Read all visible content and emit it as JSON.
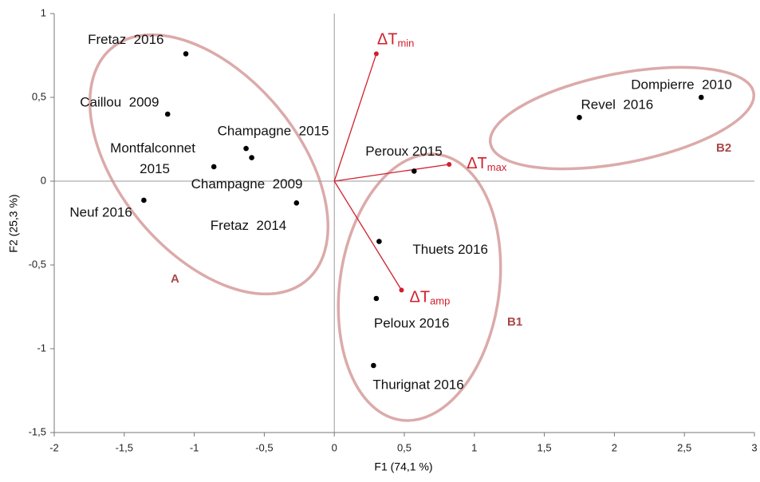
{
  "chart_data": {
    "type": "scatter",
    "xlabel": "F1 (74,1 %)",
    "ylabel": "F2 (25,3 %)",
    "xlim": [
      -2,
      3
    ],
    "ylim": [
      -1.5,
      1
    ],
    "xticks": [
      -2,
      {
        "value": -1.5,
        "label": "-1,5"
      },
      -1,
      {
        "value": -0.5,
        "label": "-0,5"
      },
      0,
      {
        "value": 0.5,
        "label": "0,5"
      },
      1,
      {
        "value": 1.5,
        "label": "1,5"
      },
      2,
      {
        "value": 2.5,
        "label": "2,5"
      },
      3
    ],
    "yticks": [
      1,
      {
        "value": 0.5,
        "label": "0,5"
      },
      0,
      {
        "value": -0.5,
        "label": "-0,5"
      },
      -1,
      {
        "value": -1.5,
        "label": "-1,5"
      }
    ],
    "points": {
      "color": "#000000",
      "labels": [
        "Fretaz  2016",
        "Caillou  2009",
        "Champagne  2015",
        "Champagne  2009",
        "Montfalconnet 2015",
        "Fretaz  2014",
        "Neuf 2016",
        "Peroux 2015",
        "Thuets 2016",
        "Peloux 2016",
        "Thurignat 2016",
        "Revel  2016",
        "Dompierre  2010"
      ],
      "x": [
        -1.06,
        -1.19,
        -0.63,
        -0.59,
        -0.86,
        -0.27,
        -1.36,
        0.57,
        0.32,
        0.3,
        0.28,
        1.75,
        2.62
      ],
      "y": [
        0.76,
        0.4,
        0.195,
        0.14,
        0.086,
        -0.13,
        -0.114,
        0.06,
        -0.36,
        -0.7,
        -1.1,
        0.38,
        0.5
      ]
    },
    "vectors": {
      "color": "#d0202e",
      "labels": [
        {
          "main": "ΔT",
          "sub": "min"
        },
        {
          "main": "ΔT",
          "sub": "max"
        },
        {
          "main": "ΔT",
          "sub": "amp"
        }
      ],
      "x": [
        0.3,
        0.82,
        0.48
      ],
      "y": [
        0.76,
        0.1,
        -0.65
      ]
    },
    "groups": [
      "A",
      "B1",
      "B2"
    ]
  }
}
